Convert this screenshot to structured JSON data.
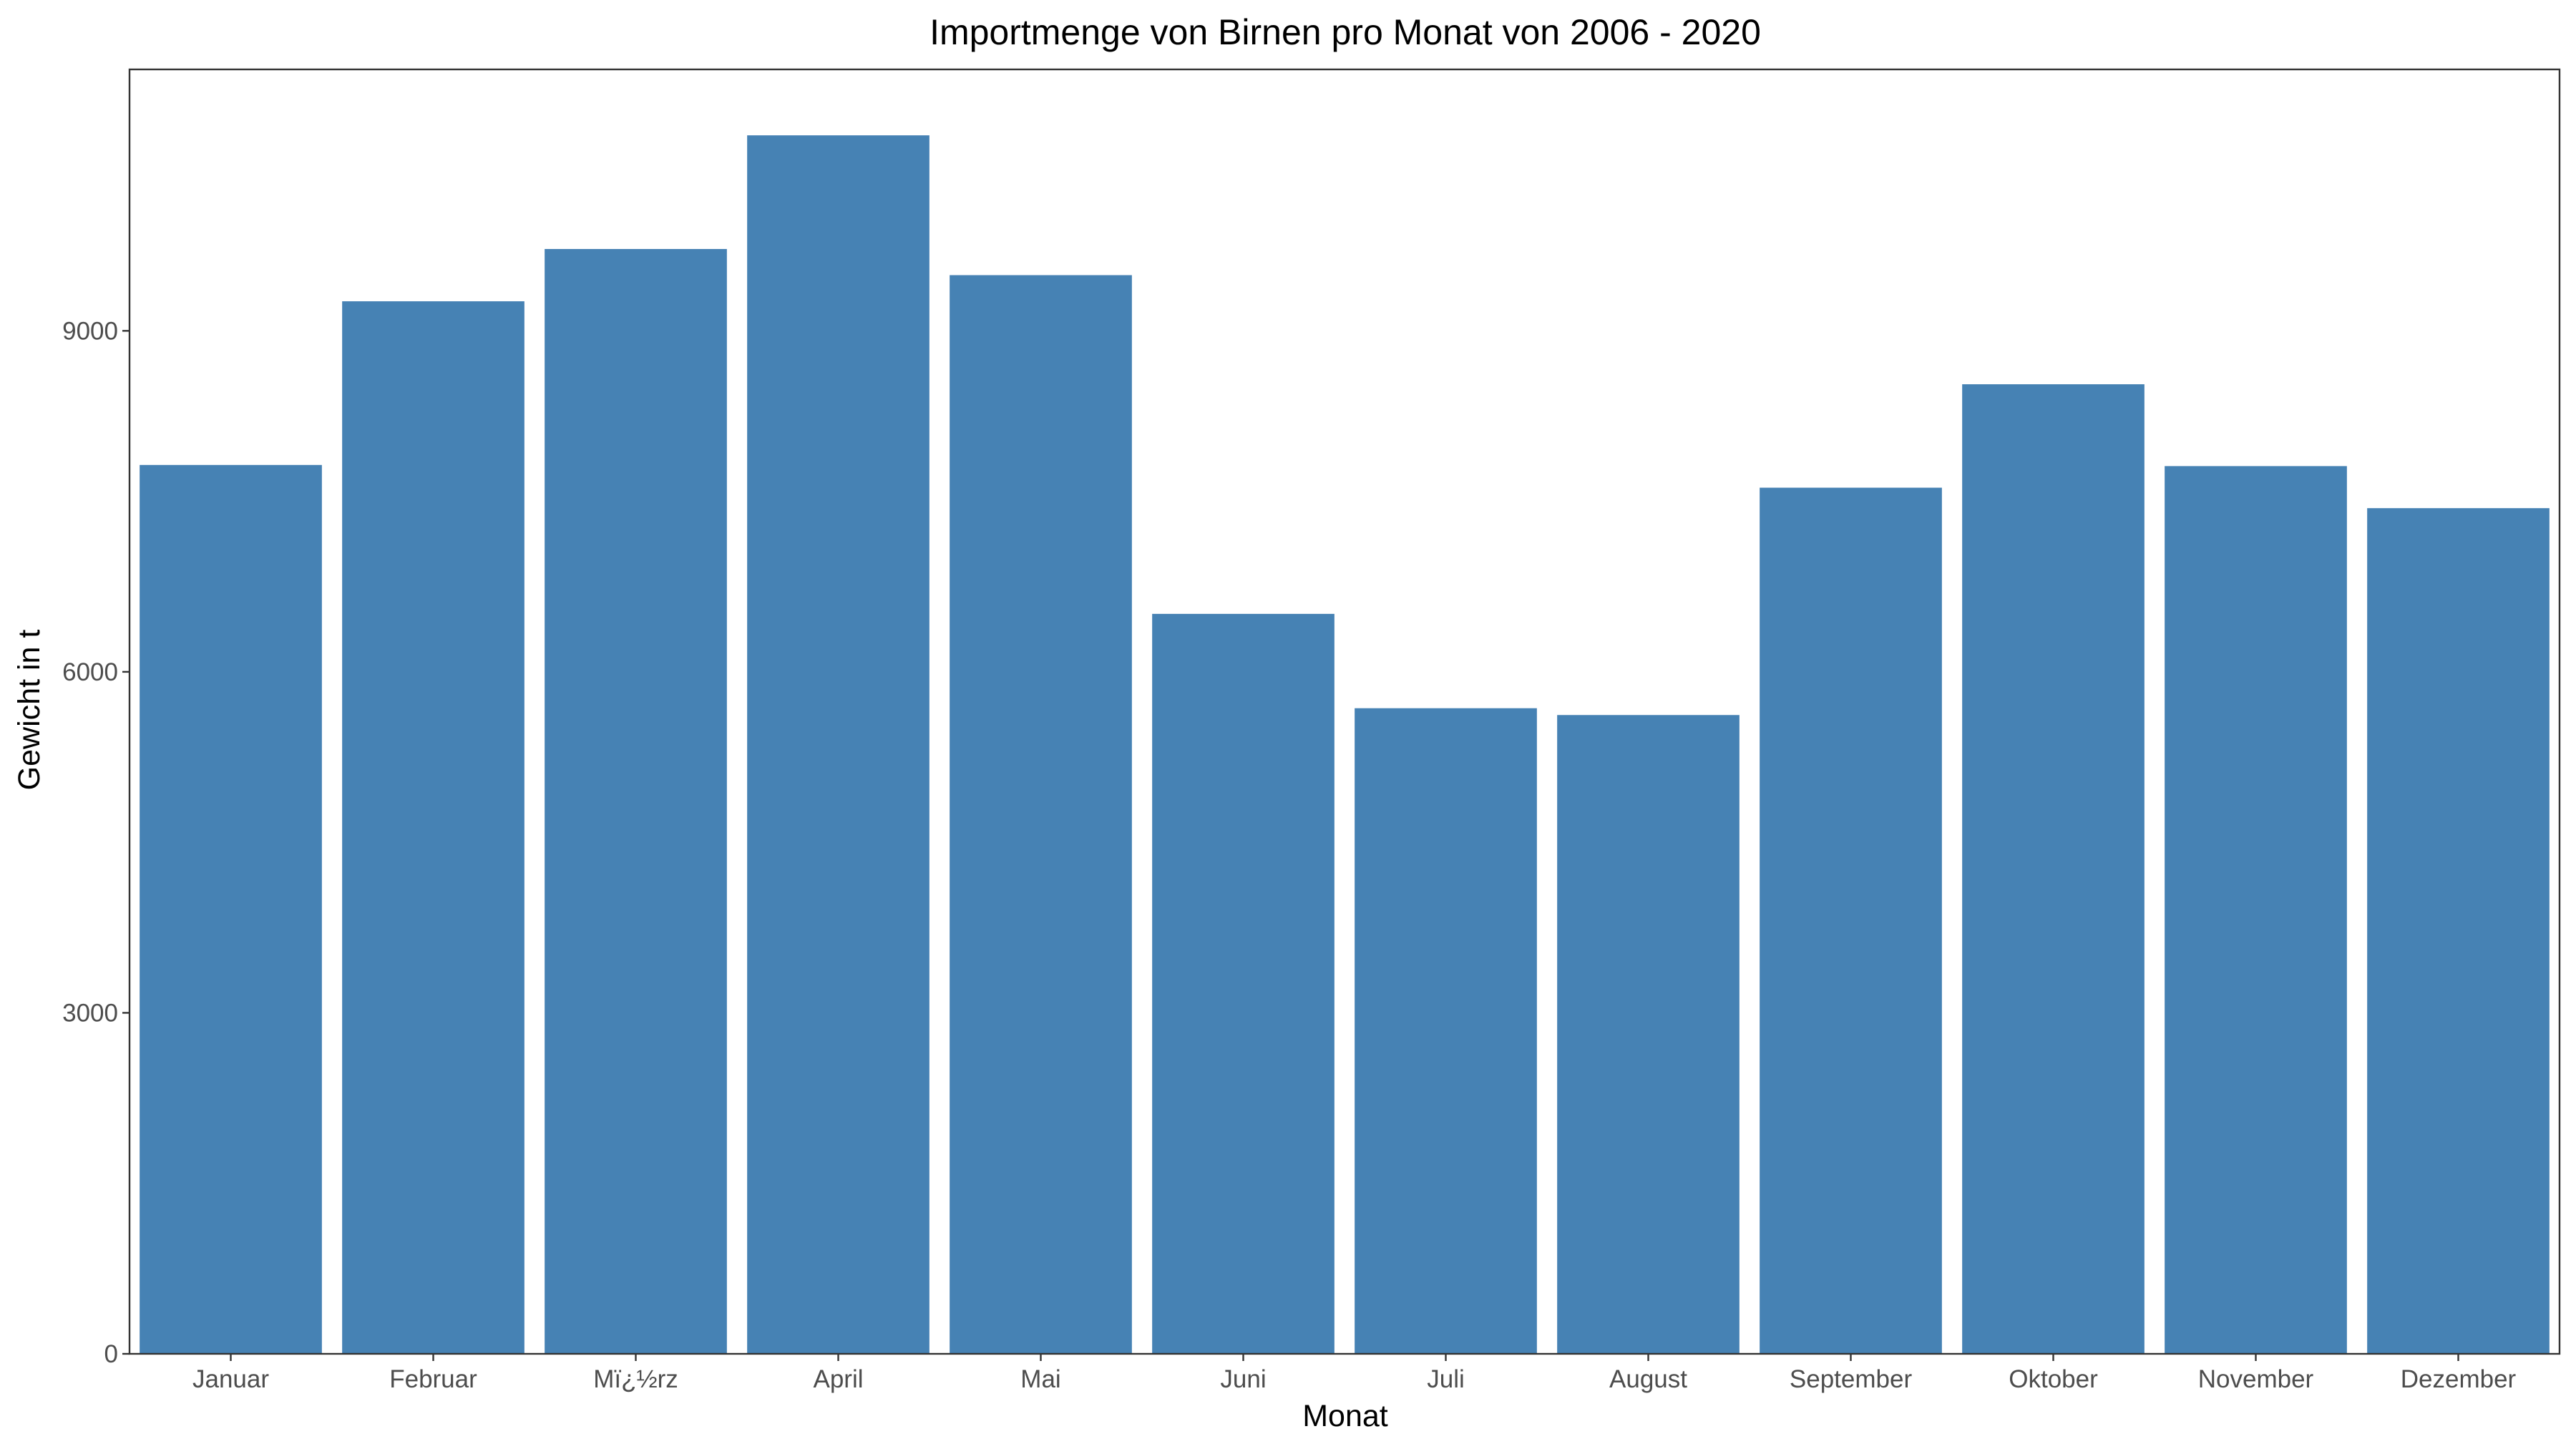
{
  "chart_data": {
    "type": "bar",
    "title": "Importmenge von Birnen pro Monat von 2006 - 2020",
    "xlabel": "Monat",
    "ylabel": "Gewicht in t",
    "categories": [
      "Januar",
      "Februar",
      "Mï¿½rz",
      "April",
      "Mai",
      "Juni",
      "Juli",
      "August",
      "September",
      "Oktober",
      "November",
      "Dezember"
    ],
    "values": [
      7820,
      9260,
      9720,
      10720,
      9490,
      6510,
      5680,
      5620,
      7620,
      8530,
      7810,
      7440
    ],
    "ylim": [
      0,
      11300
    ],
    "yticks": [
      0,
      3000,
      6000,
      9000
    ],
    "bar_color": "#4682B4",
    "grid": false,
    "legend": "none"
  }
}
